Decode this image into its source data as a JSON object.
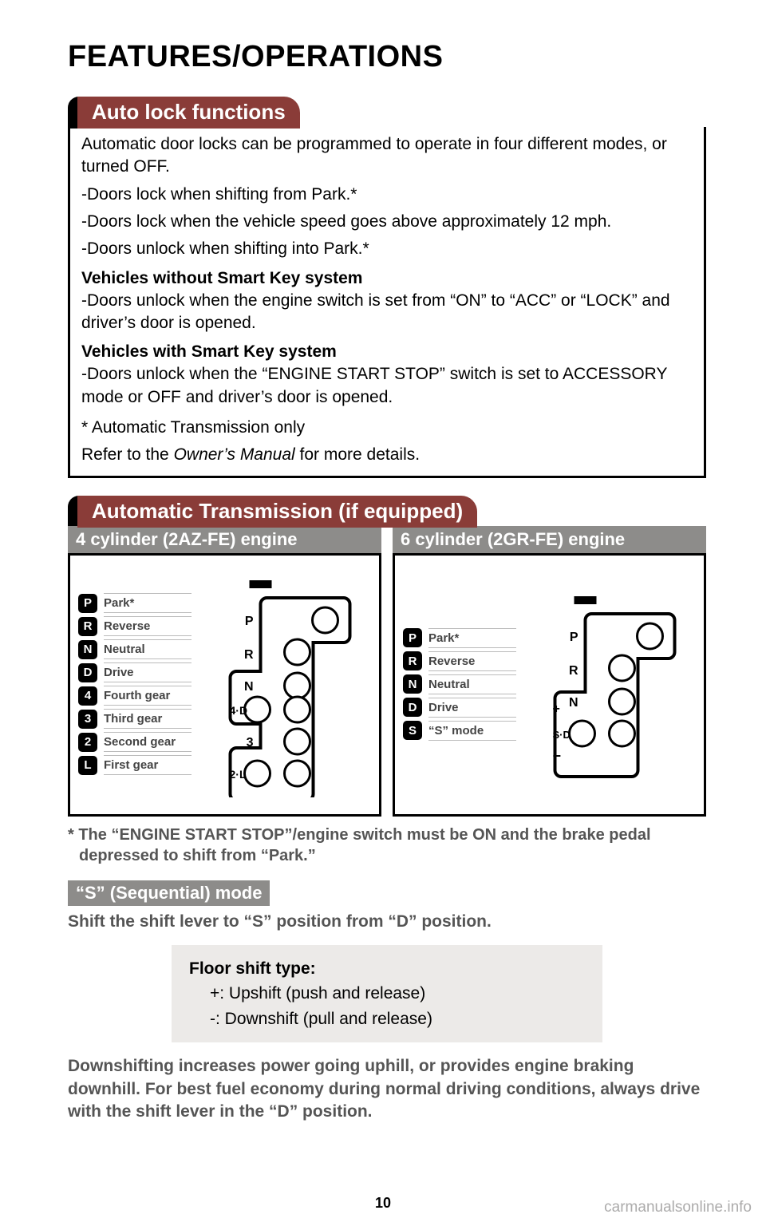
{
  "page_title": "FEATURES/OPERATIONS",
  "section1": {
    "tab": "Auto lock functions",
    "intro": "Automatic door locks can be programmed to operate in four different modes, or turned OFF.",
    "b1": "-Doors lock when shifting from Park.*",
    "b2": "-Doors lock when the vehicle speed goes above approximately 12 mph.",
    "b3": "-Doors unlock when shifting into Park.*",
    "sub1_head": "Vehicles without Smart Key system",
    "sub1_body": "-Doors unlock when the engine switch is set from “ON” to “ACC” or “LOCK” and driver’s door is opened.",
    "sub2_head": "Vehicles with Smart Key system",
    "sub2_body": "-Doors unlock when the “ENGINE START STOP” switch is set to ACCESSORY mode or OFF and driver’s door is opened.",
    "note": "* Automatic Transmission only",
    "refer_pre": "Refer to the ",
    "refer_ital": "Owner’s Manual",
    "refer_post": " for more details."
  },
  "section2": {
    "tab": "Automatic Transmission (if equipped)",
    "engine4_title": "4 cylinder (2AZ-FE) engine",
    "engine6_title": "6 cylinder (2GR-FE) engine",
    "gears4": [
      {
        "b": "P",
        "l": "Park*"
      },
      {
        "b": "R",
        "l": "Reverse"
      },
      {
        "b": "N",
        "l": "Neutral"
      },
      {
        "b": "D",
        "l": "Drive"
      },
      {
        "b": "4",
        "l": "Fourth gear"
      },
      {
        "b": "3",
        "l": "Third gear"
      },
      {
        "b": "2",
        "l": "Second gear"
      },
      {
        "b": "L",
        "l": "First gear"
      }
    ],
    "gears6": [
      {
        "b": "P",
        "l": "Park*"
      },
      {
        "b": "R",
        "l": "Reverse"
      },
      {
        "b": "N",
        "l": "Neutral"
      },
      {
        "b": "D",
        "l": "Drive"
      },
      {
        "b": "S",
        "l": "“S” mode"
      }
    ],
    "gate4_letters": [
      "P",
      "R",
      "N",
      "4·D",
      "3",
      "2·L"
    ],
    "gate6_letters": [
      "P",
      "R",
      "N",
      "S·D"
    ],
    "gate6_plus": "+",
    "gate6_minus": "−",
    "footnote": "* The “ENGINE START STOP”/engine switch must be ON and the brake pedal depressed to shift from “Park.”",
    "smode_head": "“S” (Sequential) mode",
    "smode_text": "Shift the shift lever to “S” position from “D” position.",
    "shiftbox_head": "Floor shift type:",
    "shiftbox_l1": "+:  Upshift (push and release)",
    "shiftbox_l2": "-:  Downshift (pull and release)",
    "closing": "Downshifting increases power going uphill, or provides engine braking downhill. For best fuel economy during normal driving conditions, always drive with the shift lever in the “D” position."
  },
  "page_number": "10",
  "watermark": "carmanualsonline.info",
  "colors": {
    "tab_bg": "#8a3c38",
    "gray_bg": "#8d8c8a",
    "gray_text": "#555555",
    "light_gray_box": "#eceae8"
  }
}
